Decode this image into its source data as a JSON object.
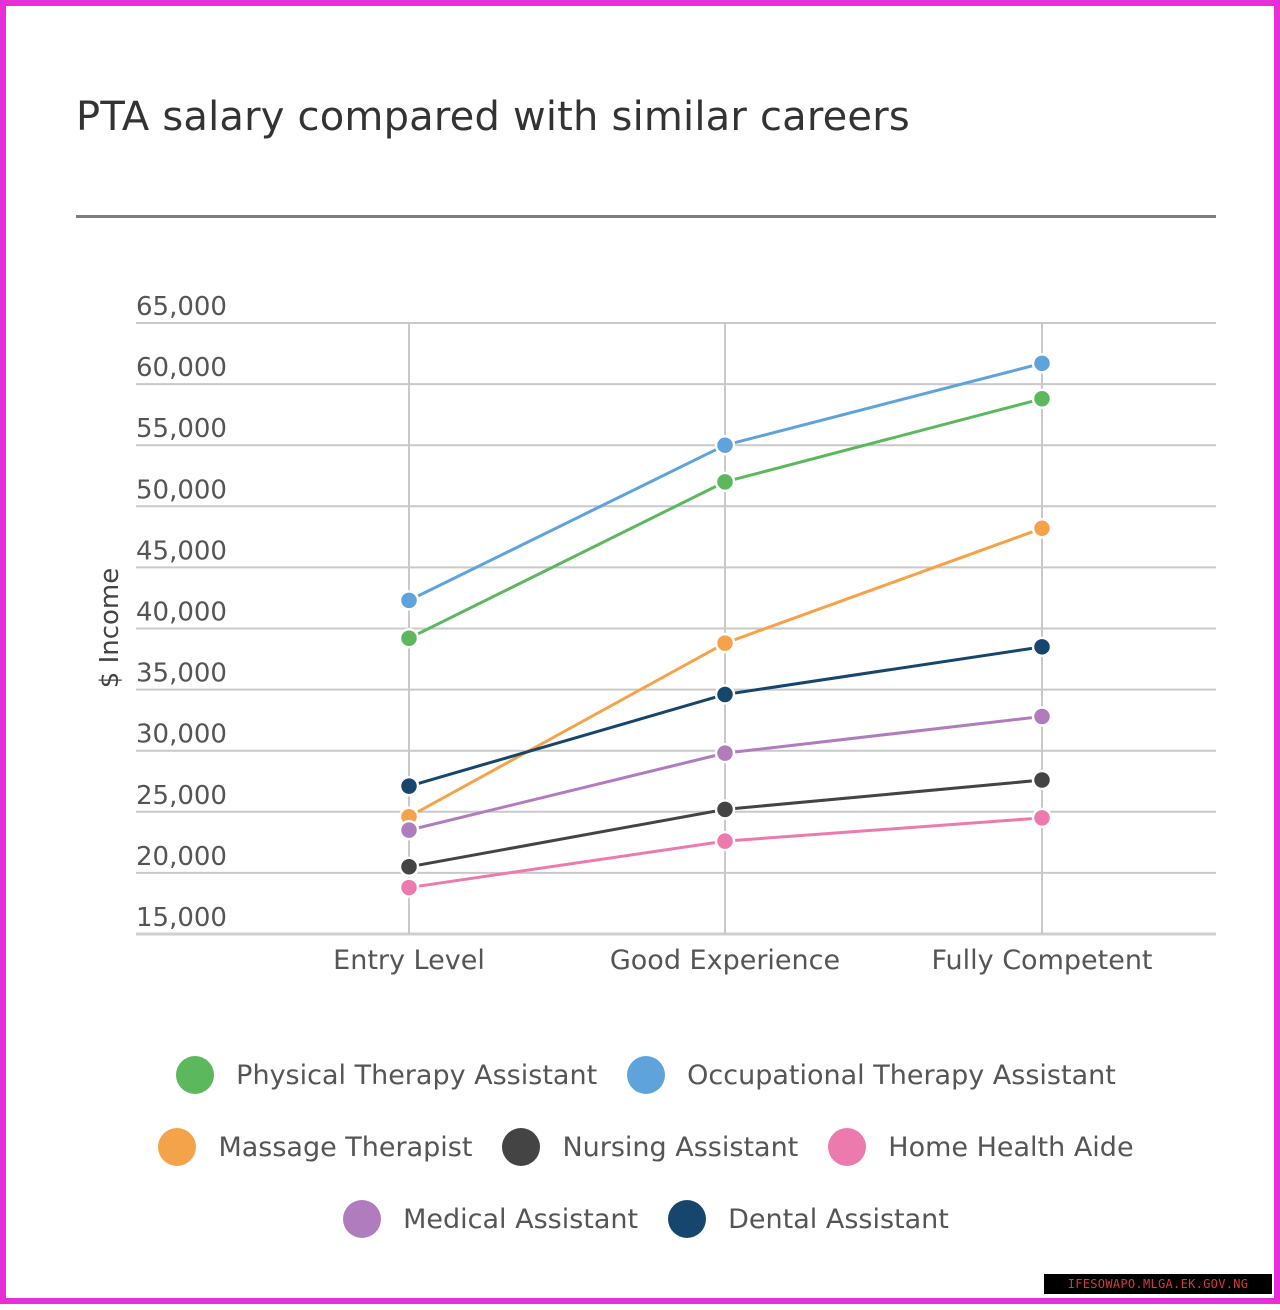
{
  "chart_data": {
    "type": "line",
    "title": "PTA salary compared with similar careers",
    "xlabel": "",
    "ylabel": "$ Income",
    "categories": [
      "Entry Level",
      "Good Experience",
      "Fully Competent"
    ],
    "ylim": [
      15000,
      65000
    ],
    "yticks": [
      15000,
      20000,
      25000,
      30000,
      35000,
      40000,
      45000,
      50000,
      55000,
      60000,
      65000
    ],
    "ytick_labels": [
      "15,000",
      "20,000",
      "25,000",
      "30,000",
      "35,000",
      "40,000",
      "45,000",
      "50,000",
      "55,000",
      "60,000",
      "65,000"
    ],
    "grid": true,
    "legend_position": "bottom",
    "series": [
      {
        "name": "Physical Therapy Assistant",
        "color": "#5cb85c",
        "values": [
          39200,
          52000,
          58800
        ]
      },
      {
        "name": "Occupational Therapy Assistant",
        "color": "#5fa3dc",
        "values": [
          42300,
          55000,
          61700
        ]
      },
      {
        "name": "Massage Therapist",
        "color": "#f5a34a",
        "values": [
          24600,
          38800,
          48200
        ]
      },
      {
        "name": "Nursing Assistant",
        "color": "#444444",
        "values": [
          20500,
          25200,
          27600
        ]
      },
      {
        "name": "Home Health Aide",
        "color": "#ec7aad",
        "values": [
          18800,
          22600,
          24500
        ]
      },
      {
        "name": "Medical Assistant",
        "color": "#b07cbd",
        "values": [
          23500,
          29800,
          32800
        ]
      },
      {
        "name": "Dental Assistant",
        "color": "#16466e",
        "values": [
          27100,
          34600,
          38500
        ]
      }
    ]
  },
  "legend_rows": [
    [
      0,
      1
    ],
    [
      2,
      3,
      4
    ],
    [
      5,
      6
    ]
  ],
  "watermark": "IFESOWAPO.MLGA.EK.GOV.NG"
}
